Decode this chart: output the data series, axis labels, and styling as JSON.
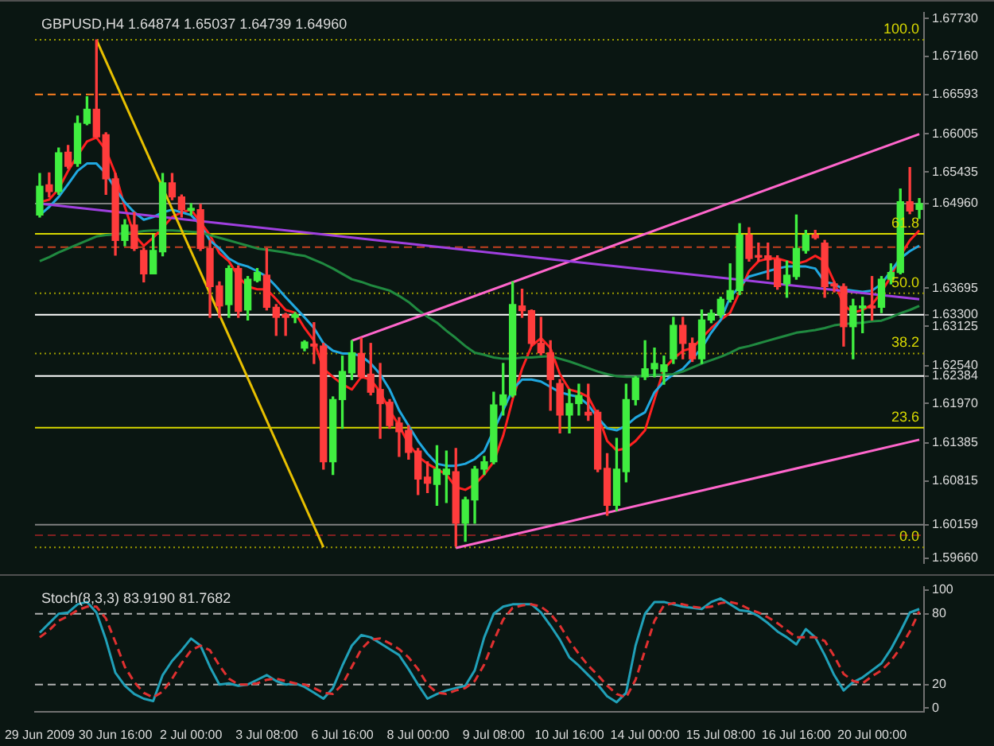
{
  "chart_data": [
    {
      "type": "candlestick",
      "title": "GBPUSD,H4 1.64874 1.65037 1.64739 1.64960",
      "categories": [
        null,
        null,
        null,
        null,
        null,
        null,
        null,
        null,
        null,
        null,
        null,
        null,
        null,
        null,
        null,
        null,
        null,
        null,
        null,
        null,
        null,
        null,
        null,
        null,
        null,
        null,
        null,
        null,
        null,
        null,
        null,
        null,
        null,
        null,
        null,
        null,
        null,
        null,
        null,
        null,
        null,
        null,
        null,
        null,
        null,
        null,
        null,
        null,
        null,
        null,
        null,
        null,
        null,
        null,
        null,
        null,
        null,
        null,
        null,
        null,
        null,
        null,
        null,
        null,
        null,
        null,
        null,
        null,
        null,
        null,
        null,
        null,
        null,
        null,
        null,
        null,
        null,
        null,
        null,
        null,
        null,
        null,
        null,
        null,
        null,
        null,
        null,
        null,
        null,
        null,
        null,
        null,
        null,
        null
      ],
      "ohlc": [
        [
          1.6479,
          1.6541,
          1.6476,
          1.6522
        ],
        [
          1.6524,
          1.6542,
          1.6506,
          1.6514
        ],
        [
          1.6514,
          1.6579,
          1.651,
          1.6572
        ],
        [
          1.6573,
          1.6583,
          1.6549,
          1.6552
        ],
        [
          1.6556,
          1.6627,
          1.6552,
          1.6616
        ],
        [
          1.6616,
          1.6656,
          1.6614,
          1.6637
        ],
        [
          1.6637,
          1.6741,
          1.6595,
          1.6596
        ],
        [
          1.6599,
          1.6602,
          1.651,
          1.6533
        ],
        [
          1.6533,
          1.6541,
          1.6419,
          1.6441
        ],
        [
          1.6441,
          1.6472,
          1.6433,
          1.6464
        ],
        [
          1.6464,
          1.6483,
          1.6426,
          1.6429
        ],
        [
          1.6426,
          1.6429,
          1.6379,
          1.6391
        ],
        [
          1.6391,
          1.6449,
          1.6391,
          1.6426
        ],
        [
          1.6424,
          1.6541,
          1.6418,
          1.6527
        ],
        [
          1.6527,
          1.6541,
          1.6502,
          1.6506
        ],
        [
          1.6506,
          1.6509,
          1.6476,
          1.6487
        ],
        [
          1.6486,
          1.6496,
          1.6479,
          1.6489
        ],
        [
          1.6487,
          1.6495,
          1.6426,
          1.6429
        ],
        [
          1.6429,
          1.6441,
          1.6326,
          1.6372
        ],
        [
          1.6373,
          1.6379,
          1.6326,
          1.6343
        ],
        [
          1.6345,
          1.6403,
          1.6326,
          1.6399
        ],
        [
          1.6399,
          1.6403,
          1.6326,
          1.6335
        ],
        [
          1.6337,
          1.6387,
          1.6322,
          1.6383
        ],
        [
          1.6381,
          1.6399,
          1.6379,
          1.6393
        ],
        [
          1.6389,
          1.6429,
          1.6337,
          1.6341
        ],
        [
          1.6341,
          1.6345,
          1.6299,
          1.6326
        ],
        [
          1.633,
          1.6332,
          1.6299,
          1.6326
        ],
        [
          1.6326,
          1.6333,
          1.6318,
          1.633
        ],
        [
          1.628,
          1.6291,
          1.6276,
          1.6289
        ],
        [
          1.6286,
          1.6318,
          1.6257,
          1.6283
        ],
        [
          1.6283,
          1.6287,
          1.6099,
          1.611
        ],
        [
          1.611,
          1.6207,
          1.6091,
          1.6203
        ],
        [
          1.6203,
          1.6268,
          1.616,
          1.6245
        ],
        [
          1.6243,
          1.6291,
          1.6233,
          1.6273
        ],
        [
          1.6272,
          1.6295,
          1.6235,
          1.6237
        ],
        [
          1.6241,
          1.6287,
          1.621,
          1.6214
        ],
        [
          1.6218,
          1.6257,
          1.6145,
          1.6197
        ],
        [
          1.6199,
          1.6203,
          1.616,
          1.6164
        ],
        [
          1.6168,
          1.6176,
          1.6118,
          1.6155
        ],
        [
          1.6157,
          1.6164,
          1.6114,
          1.6124
        ],
        [
          1.6126,
          1.613,
          1.6061,
          1.6084
        ],
        [
          1.6087,
          1.611,
          1.6064,
          1.6078
        ],
        [
          1.6076,
          1.6134,
          1.6045,
          1.6099
        ],
        [
          1.6091,
          1.6126,
          1.6049,
          1.6099
        ],
        [
          1.6095,
          1.613,
          1.5984,
          1.6018
        ],
        [
          1.6018,
          1.6057,
          1.5991,
          1.6053
        ],
        [
          1.6053,
          1.6103,
          1.6018,
          1.6099
        ],
        [
          1.6099,
          1.6118,
          1.6091,
          1.611
        ],
        [
          1.611,
          1.6214,
          1.6107,
          1.6195
        ],
        [
          1.6195,
          1.6257,
          1.618,
          1.621
        ],
        [
          1.621,
          1.6379,
          1.6207,
          1.6345
        ],
        [
          1.6343,
          1.6368,
          1.6326,
          1.6336
        ],
        [
          1.6336,
          1.6337,
          1.6283,
          1.6287
        ],
        [
          1.6287,
          1.6326,
          1.627,
          1.6273
        ],
        [
          1.6273,
          1.6291,
          1.6187,
          1.6233
        ],
        [
          1.6227,
          1.6233,
          1.6153,
          1.618
        ],
        [
          1.618,
          1.6218,
          1.6153,
          1.6197
        ],
        [
          1.6197,
          1.6226,
          1.618,
          1.6209
        ],
        [
          1.6184,
          1.6226,
          1.6172,
          1.618
        ],
        [
          1.6184,
          1.6187,
          1.6095,
          1.6099
        ],
        [
          1.61,
          1.6122,
          1.603,
          1.6045
        ],
        [
          1.6045,
          1.6145,
          1.6037,
          1.6099
        ],
        [
          1.6095,
          1.6226,
          1.608,
          1.6203
        ],
        [
          1.6203,
          1.6237,
          1.6195,
          1.6235
        ],
        [
          1.6237,
          1.6291,
          1.6233,
          1.6249
        ],
        [
          1.6249,
          1.628,
          1.6237,
          1.6257
        ],
        [
          1.6245,
          1.6268,
          1.6226,
          1.6255
        ],
        [
          1.6264,
          1.6326,
          1.6257,
          1.6314
        ],
        [
          1.6314,
          1.6326,
          1.6264,
          1.6287
        ],
        [
          1.6287,
          1.6295,
          1.626,
          1.6264
        ],
        [
          1.6264,
          1.6337,
          1.6257,
          1.6322
        ],
        [
          1.6322,
          1.6337,
          1.6318,
          1.6332
        ],
        [
          1.633,
          1.6356,
          1.6326,
          1.6353
        ],
        [
          1.6353,
          1.6406,
          1.6349,
          1.6366
        ],
        [
          1.6366,
          1.6466,
          1.636,
          1.6449
        ],
        [
          1.6449,
          1.646,
          1.641,
          1.6414
        ],
        [
          1.6418,
          1.6437,
          1.641,
          1.6416
        ],
        [
          1.6418,
          1.6437,
          1.6383,
          1.6412
        ],
        [
          1.6412,
          1.6418,
          1.6368,
          1.6372
        ],
        [
          1.6376,
          1.641,
          1.6356,
          1.6389
        ],
        [
          1.6387,
          1.6479,
          1.6383,
          1.6429
        ],
        [
          1.6426,
          1.6456,
          1.6422,
          1.6449
        ],
        [
          1.6449,
          1.6456,
          1.6443,
          1.6445
        ],
        [
          1.6437,
          1.6441,
          1.6356,
          1.6372
        ],
        [
          1.6376,
          1.6379,
          1.6364,
          1.6373
        ],
        [
          1.6372,
          1.6376,
          1.6283,
          1.6312
        ],
        [
          1.6312,
          1.6353,
          1.6264,
          1.6343
        ],
        [
          1.634,
          1.6356,
          1.6303,
          1.6343
        ],
        [
          1.6343,
          1.6387,
          1.6322,
          1.634
        ],
        [
          1.6341,
          1.6387,
          1.6333,
          1.6383
        ],
        [
          1.6383,
          1.6406,
          1.6376,
          1.6393
        ],
        [
          1.6393,
          1.6518,
          1.6391,
          1.6499
        ],
        [
          1.6499,
          1.655,
          1.6481,
          1.6485
        ],
        [
          1.64874,
          1.65037,
          1.64739,
          1.6496
        ]
      ],
      "colors": [
        "#40ee40",
        "#ff3c3c",
        "#40ee40",
        "#ff3c3c",
        "#40ee40",
        "#40ee40",
        "#ff3c3c",
        "#ff3c3c",
        "#ff3c3c",
        "#40ee40",
        "#ff3c3c",
        "#ff3c3c",
        "#40ee40",
        "#40ee40",
        "#ff3c3c",
        "#ff3c3c",
        "#40ee40",
        "#ff3c3c",
        "#ff3c3c",
        "#ff3c3c",
        "#40ee40",
        "#ff3c3c",
        "#40ee40",
        "#40ee40",
        "#ff3c3c",
        "#ff3c3c",
        "#ff3c3c",
        "#40ee40",
        "#40ee40",
        "#ff3c3c",
        "#ff3c3c",
        "#40ee40",
        "#40ee40",
        "#40ee40",
        "#ff3c3c",
        "#ff3c3c",
        "#ff3c3c",
        "#ff3c3c",
        "#ff3c3c",
        "#ff3c3c",
        "#ff3c3c",
        "#ff3c3c",
        "#40ee40",
        "#40ee40",
        "#ff3c3c",
        "#40ee40",
        "#40ee40",
        "#40ee40",
        "#40ee40",
        "#40ee40",
        "#40ee40",
        "#ff3c3c",
        "#ff3c3c",
        "#ff3c3c",
        "#ff3c3c",
        "#ff3c3c",
        "#40ee40",
        "#40ee40",
        "#ff3c3c",
        "#ff3c3c",
        "#ff3c3c",
        "#40ee40",
        "#40ee40",
        "#40ee40",
        "#40ee40",
        "#40ee40",
        "#40ee40",
        "#40ee40",
        "#ff3c3c",
        "#ff3c3c",
        "#40ee40",
        "#40ee40",
        "#40ee40",
        "#40ee40",
        "#40ee40",
        "#ff3c3c",
        "#ff3c3c",
        "#ff3c3c",
        "#ff3c3c",
        "#40ee40",
        "#40ee40",
        "#40ee40",
        "#ff3c3c",
        "#ff3c3c",
        "#ff3c3c",
        "#ff3c3c",
        "#40ee40",
        "#40ee40",
        "#ff3c3c",
        "#40ee40",
        "#40ee40",
        "#40ee40",
        "#ff3c3c",
        "#40ee40"
      ],
      "series": [
        {
          "type": "line",
          "color": "#e8c000",
          "values": [
            null,
            null,
            null,
            null,
            null,
            null,
            1.6741,
            null,
            null,
            null,
            null,
            null,
            null,
            null,
            null,
            null,
            null,
            null,
            null,
            null,
            null,
            null,
            null,
            null,
            null,
            null,
            null,
            null,
            null,
            null,
            1.5982,
            null,
            null,
            null,
            null,
            null,
            null,
            null,
            null,
            null,
            null,
            null,
            null,
            null,
            null,
            null,
            null,
            null,
            null,
            null,
            null,
            null,
            null,
            null,
            null,
            null,
            null,
            null,
            null,
            null,
            null,
            null,
            null,
            null,
            null,
            null,
            null,
            null,
            null,
            null,
            null,
            null,
            null,
            null,
            null,
            null,
            null,
            null,
            null,
            null,
            null,
            null,
            null,
            null,
            null,
            null,
            null,
            null,
            null,
            null,
            null,
            null,
            null,
            null
          ]
        },
        {
          "type": "line",
          "color": "#a040e0",
          "values": [
            1.6496,
            null,
            null,
            null,
            null,
            null,
            null,
            null,
            null,
            null,
            null,
            null,
            null,
            null,
            null,
            null,
            null,
            null,
            null,
            null,
            null,
            null,
            null,
            null,
            null,
            null,
            null,
            null,
            null,
            null,
            null,
            null,
            null,
            null,
            null,
            null,
            null,
            null,
            null,
            null,
            null,
            null,
            null,
            null,
            null,
            null,
            null,
            null,
            null,
            null,
            null,
            null,
            null,
            null,
            null,
            null,
            null,
            null,
            null,
            null,
            null,
            null,
            null,
            null,
            null,
            null,
            null,
            null,
            null,
            null,
            null,
            null,
            null,
            null,
            null,
            null,
            null,
            null,
            null,
            null,
            null,
            null,
            null,
            null,
            null,
            null,
            null,
            null,
            null,
            null,
            null,
            null,
            null,
            1.6353
          ]
        },
        {
          "type": "line",
          "color": "#ff66cc",
          "values": [
            null,
            null,
            null,
            null,
            null,
            null,
            null,
            null,
            null,
            null,
            null,
            null,
            null,
            null,
            null,
            null,
            null,
            null,
            null,
            null,
            null,
            null,
            null,
            null,
            null,
            null,
            null,
            null,
            null,
            null,
            null,
            null,
            null,
            1.6291,
            null,
            null,
            null,
            null,
            null,
            null,
            null,
            null,
            null,
            null,
            null,
            null,
            null,
            null,
            null,
            null,
            null,
            null,
            null,
            null,
            null,
            null,
            null,
            null,
            null,
            null,
            null,
            null,
            null,
            null,
            null,
            null,
            null,
            null,
            null,
            null,
            null,
            null,
            null,
            null,
            null,
            null,
            null,
            null,
            null,
            null,
            null,
            null,
            null,
            null,
            null,
            null,
            null,
            null,
            null,
            null,
            null,
            null,
            null,
            1.66
          ]
        },
        {
          "type": "line",
          "color": "#ff66cc",
          "values": [
            null,
            null,
            null,
            null,
            null,
            null,
            null,
            null,
            null,
            null,
            null,
            null,
            null,
            null,
            null,
            null,
            null,
            null,
            null,
            null,
            null,
            null,
            null,
            null,
            null,
            null,
            null,
            null,
            null,
            null,
            null,
            null,
            null,
            null,
            null,
            null,
            null,
            null,
            null,
            null,
            null,
            null,
            null,
            null,
            1.5981,
            null,
            null,
            null,
            null,
            null,
            null,
            null,
            null,
            null,
            null,
            null,
            null,
            null,
            null,
            null,
            null,
            null,
            null,
            null,
            null,
            null,
            null,
            null,
            null,
            null,
            null,
            null,
            null,
            null,
            null,
            null,
            null,
            null,
            null,
            null,
            null,
            null,
            null,
            null,
            null,
            null,
            null,
            null,
            null,
            null,
            null,
            null,
            null,
            1.6143
          ]
        },
        {
          "type": "line",
          "color": "#208a40",
          "values": [
            1.641,
            1.6416,
            1.6423,
            1.6429,
            1.6435,
            1.6441,
            1.6447,
            1.6449,
            1.645,
            1.6452,
            1.6453,
            1.6455,
            1.6456,
            1.6456,
            1.6456,
            1.6455,
            1.6454,
            1.6453,
            1.6449,
            1.6445,
            1.6441,
            1.6437,
            1.6433,
            1.6429,
            1.6427,
            1.6425,
            1.6423,
            1.642,
            1.6418,
            1.6412,
            1.6406,
            1.6399,
            1.6391,
            1.6383,
            1.6379,
            1.6374,
            1.637,
            1.6366,
            1.6358,
            1.6349,
            1.6337,
            1.6327,
            1.6318,
            1.6306,
            1.6295,
            1.6283,
            1.6273,
            1.627,
            1.6266,
            1.6264,
            1.6264,
            1.6266,
            1.6266,
            1.6267,
            1.6268,
            1.6264,
            1.626,
            1.6255,
            1.625,
            1.6245,
            1.6241,
            1.6238,
            1.6237,
            1.6237,
            1.6239,
            1.624,
            1.624,
            1.6241,
            1.6245,
            1.6251,
            1.6257,
            1.6262,
            1.6267,
            1.6273,
            1.628,
            1.6283,
            1.6287,
            1.6291,
            1.6295,
            1.6299,
            1.6303,
            1.6305,
            1.6307,
            1.631,
            1.6314,
            1.6316,
            1.6317,
            1.6318,
            1.632,
            1.6321,
            1.6326,
            1.6332,
            1.6337,
            1.6343
          ]
        },
        {
          "type": "line",
          "color": "#20a8e0",
          "values": [
            1.6479,
            1.6491,
            1.6506,
            1.6525,
            1.6545,
            1.6556,
            1.6556,
            1.6541,
            1.6518,
            1.6498,
            1.6483,
            1.6472,
            1.6476,
            1.6483,
            1.6487,
            1.6483,
            1.6479,
            1.6464,
            1.6441,
            1.6429,
            1.6414,
            1.6406,
            1.6402,
            1.6395,
            1.6387,
            1.6372,
            1.6356,
            1.6341,
            1.6326,
            1.631,
            1.6287,
            1.6276,
            1.6272,
            1.6272,
            1.6268,
            1.6257,
            1.6241,
            1.6218,
            1.6187,
            1.6164,
            1.6141,
            1.6122,
            1.6107,
            1.6104,
            1.6104,
            1.6107,
            1.6114,
            1.6126,
            1.6157,
            1.6187,
            1.6218,
            1.6233,
            1.6233,
            1.623,
            1.6222,
            1.6214,
            1.621,
            1.6207,
            1.6195,
            1.6176,
            1.616,
            1.6157,
            1.6164,
            1.6176,
            1.6184,
            1.6214,
            1.623,
            1.6241,
            1.6249,
            1.6264,
            1.628,
            1.6303,
            1.6322,
            1.6356,
            1.6372,
            1.6387,
            1.6391,
            1.6395,
            1.6399,
            1.6402,
            1.6402,
            1.6402,
            1.6399,
            1.6379,
            1.6376,
            1.6368,
            1.6366,
            1.6364,
            1.6366,
            1.6376,
            1.6395,
            1.6414,
            1.6425,
            1.6433
          ]
        },
        {
          "type": "line",
          "color": "#ff2020",
          "values": [
            1.6498,
            1.6502,
            1.6518,
            1.6545,
            1.6568,
            1.6589,
            1.6595,
            1.6576,
            1.6541,
            1.6491,
            1.6449,
            1.6433,
            1.6445,
            1.646,
            1.6476,
            1.6483,
            1.6487,
            1.6468,
            1.6449,
            1.6422,
            1.641,
            1.6387,
            1.6372,
            1.6368,
            1.6368,
            1.6353,
            1.6337,
            1.6333,
            1.631,
            1.6291,
            1.6249,
            1.6237,
            1.6226,
            1.6218,
            1.6237,
            1.6233,
            1.6214,
            1.6187,
            1.6164,
            1.6137,
            1.6118,
            1.6107,
            1.6099,
            1.6091,
            1.6072,
            1.6068,
            1.6076,
            1.6091,
            1.611,
            1.6149,
            1.6203,
            1.6249,
            1.6283,
            1.6295,
            1.628,
            1.6241,
            1.6218,
            1.6214,
            1.6207,
            1.618,
            1.6141,
            1.6127,
            1.613,
            1.6141,
            1.6157,
            1.6203,
            1.6249,
            1.6264,
            1.6276,
            1.628,
            1.6295,
            1.631,
            1.6322,
            1.6333,
            1.6364,
            1.6395,
            1.641,
            1.6414,
            1.6414,
            1.641,
            1.6406,
            1.641,
            1.6418,
            1.641,
            1.6379,
            1.6345,
            1.6333,
            1.6337,
            1.6345,
            1.6364,
            1.6387,
            1.6418,
            1.6441,
            1.6456
          ]
        }
      ],
      "ylim": [
        1.5958,
        1.6782
      ],
      "yticks": [
        {
          "value": 1.6773,
          "label": "1.67730"
        },
        {
          "value": 1.6716,
          "label": "1.67160"
        },
        1.66593,
        1.66005,
        1.65435,
        {
          "value": 1.6496,
          "label": "1.64960"
        },
        1.63695,
        {
          "value": 1.633,
          "label": "1.63300"
        },
        1.63125,
        {
          "value": 1.6254,
          "label": "1.62540"
        },
        1.62384,
        {
          "value": 1.6197,
          "label": "1.61970"
        },
        1.61385,
        1.60815,
        1.60159,
        {
          "value": 1.5966,
          "label": "1.59660"
        }
      ],
      "ref_lines": [
        {
          "axis": "y",
          "value": 1.6741,
          "color": "#9a9a00",
          "line_style": "dotted"
        },
        {
          "axis": "y",
          "value": 1.6451,
          "color": "#d8d800"
        },
        {
          "axis": "y",
          "value": 1.6362,
          "color": "#9a9a00",
          "line_style": "dotted"
        },
        {
          "axis": "y",
          "value": 1.6272,
          "color": "#9a9a00",
          "line_style": "dotted"
        },
        {
          "axis": "y",
          "value": 1.6161,
          "color": "#d8d800"
        },
        {
          "axis": "y",
          "value": 1.5982,
          "color": "#9a9a00",
          "line_style": "dotted"
        },
        {
          "axis": "y",
          "value": 1.66593,
          "color": "#ff8020",
          "line_style": "dashed"
        },
        {
          "axis": "y",
          "value": 1.6431,
          "color": "#c04020",
          "line_style": "dashed"
        },
        {
          "axis": "y",
          "value": 1.6,
          "color": "#802020",
          "line_style": "dashed"
        },
        {
          "axis": "y",
          "value": 1.6496,
          "color": "#808080"
        },
        {
          "axis": "y",
          "value": 1.633,
          "color": "#ffffff"
        },
        {
          "axis": "y",
          "value": 1.62384,
          "color": "#ffffff"
        },
        {
          "axis": "y",
          "value": 1.60159,
          "color": "#808080"
        }
      ],
      "annotations": [
        {
          "text": "100.0",
          "y": 1.6741
        },
        {
          "text": "61.8",
          "y": 1.6451
        },
        {
          "text": "50.0",
          "y": 1.6362
        },
        {
          "text": "38.2",
          "y": 1.6272
        },
        {
          "text": "23.6",
          "y": 1.6161
        },
        {
          "text": "0.0",
          "y": 1.5982
        }
      ],
      "tick_labels": "y"
    },
    {
      "type": "line",
      "title": "Stoch(8,3,3) 83.9190 81.7682",
      "categories": [
        "29 Jun 2009",
        null,
        null,
        null,
        null,
        null,
        null,
        null,
        "30 Jun 16:00",
        null,
        null,
        null,
        null,
        null,
        null,
        null,
        "2 Jul 00:00",
        null,
        null,
        null,
        null,
        null,
        null,
        null,
        "3 Jul 08:00",
        null,
        null,
        null,
        null,
        null,
        null,
        null,
        "6 Jul 16:00",
        null,
        null,
        null,
        null,
        null,
        null,
        null,
        "8 Jul 00:00",
        null,
        null,
        null,
        null,
        null,
        null,
        null,
        "9 Jul 08:00",
        null,
        null,
        null,
        null,
        null,
        null,
        null,
        "10 Jul 16:00",
        null,
        null,
        null,
        null,
        null,
        null,
        null,
        "14 Jul 00:00",
        null,
        null,
        null,
        null,
        null,
        null,
        null,
        "15 Jul 08:00",
        null,
        null,
        null,
        null,
        null,
        null,
        null,
        "16 Jul 16:00",
        null,
        null,
        null,
        null,
        null,
        null,
        null,
        "20 Jul 00:00",
        null,
        null,
        null,
        null,
        null
      ],
      "series": [
        {
          "color": "#e03030",
          "line_style": "dashed",
          "values": [
            60,
            66,
            74,
            78,
            83,
            86,
            86,
            76,
            56,
            35,
            22,
            13,
            9,
            14,
            25,
            38,
            49,
            53,
            49,
            36,
            25,
            20,
            20,
            21,
            24,
            25,
            23,
            21,
            20,
            17,
            13,
            12,
            20,
            35,
            50,
            58,
            59,
            55,
            50,
            43,
            33,
            20,
            13,
            12,
            15,
            17,
            23,
            37,
            57,
            75,
            85,
            87,
            88,
            86,
            80,
            70,
            57,
            46,
            36,
            28,
            19,
            12,
            9,
            24,
            49,
            74,
            87,
            89,
            88,
            86,
            85,
            86,
            89,
            90,
            88,
            84,
            81,
            77,
            72,
            66,
            60,
            60,
            60,
            57,
            44,
            29,
            23,
            21,
            27,
            32,
            40,
            51,
            65,
            82
          ]
        },
        {
          "color": "#20a0b8",
          "values": [
            64,
            72,
            80,
            81,
            88,
            90,
            81,
            58,
            30,
            19,
            12,
            8,
            6,
            28,
            40,
            49,
            59,
            53,
            35,
            20,
            21,
            19,
            20,
            24,
            28,
            23,
            20,
            21,
            18,
            13,
            8,
            17,
            36,
            53,
            62,
            60,
            55,
            50,
            45,
            33,
            20,
            8,
            12,
            15,
            17,
            19,
            32,
            60,
            80,
            86,
            88,
            88,
            88,
            81,
            70,
            58,
            43,
            36,
            28,
            20,
            10,
            5,
            13,
            53,
            80,
            90,
            90,
            88,
            86,
            85,
            84,
            90,
            93,
            88,
            83,
            82,
            78,
            72,
            65,
            60,
            54,
            67,
            60,
            45,
            28,
            15,
            22,
            26,
            32,
            38,
            50,
            65,
            81,
            84
          ]
        }
      ],
      "ylim": [
        -3,
        103
      ],
      "yticks": [
        0,
        20,
        80,
        100
      ],
      "ref_lines": [
        {
          "axis": "y",
          "value": 20,
          "color": "#b0b0b0",
          "line_style": "dashed"
        },
        {
          "axis": "y",
          "value": 80,
          "color": "#b0b0b0",
          "line_style": "dashed"
        }
      ]
    }
  ]
}
